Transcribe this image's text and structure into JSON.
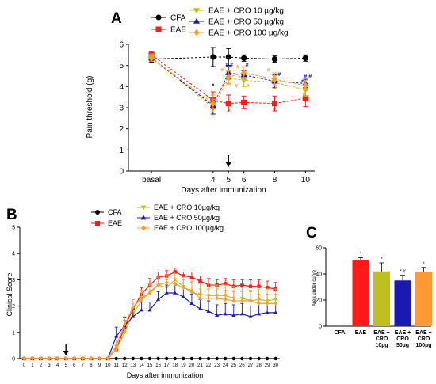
{
  "colors": {
    "CFA": "#000000",
    "EAE": "#ff1a1a",
    "CRO10": "#bfbf20",
    "CRO50": "#1a1ab3",
    "CRO100": "#ff9933",
    "axis": "#000000"
  },
  "chart_data": [
    {
      "panel": "A",
      "type": "line",
      "title": "",
      "xlabel": "Days after immunization",
      "ylabel": "Pain threshold (g)",
      "x_categories": [
        "basal",
        "4",
        "5",
        "6",
        "8",
        "10"
      ],
      "x_positions": [
        0,
        4,
        5,
        6,
        8,
        10
      ],
      "xlim": [
        -1.5,
        10.6
      ],
      "ylim": [
        0,
        6
      ],
      "yticks": [
        "0",
        "1",
        "2",
        "3",
        "4",
        "5",
        "6"
      ],
      "arrow_at_x": 5,
      "series": [
        {
          "name": "CFA",
          "key": "CFA",
          "marker": "circle",
          "values": [
            5.3,
            5.4,
            5.4,
            5.35,
            5.3,
            5.35
          ],
          "err": [
            0.15,
            0.45,
            0.4,
            0.15,
            0.15,
            0.15
          ]
        },
        {
          "name": "EAE",
          "key": "EAE",
          "marker": "square",
          "values": [
            5.5,
            3.35,
            3.2,
            3.25,
            3.2,
            3.45
          ],
          "err": [
            0.15,
            0.4,
            0.4,
            0.3,
            0.35,
            0.4
          ]
        },
        {
          "name": "EAE + CRO 10 µg/kg",
          "key": "CRO10",
          "marker": "tri-down",
          "values": [
            5.4,
            3.0,
            4.4,
            4.3,
            4.2,
            3.85
          ],
          "err": [
            0.15,
            0.4,
            0.3,
            0.3,
            0.3,
            0.3
          ]
        },
        {
          "name": "EAE + CRO 50 µg/kg",
          "key": "CRO50",
          "marker": "tri-up",
          "values": [
            5.35,
            3.1,
            4.65,
            4.55,
            4.25,
            4.15
          ],
          "err": [
            0.15,
            0.4,
            0.3,
            0.2,
            0.3,
            0.2
          ]
        },
        {
          "name": "EAE + CRO 100 µg/kg",
          "key": "CRO100",
          "marker": "diamond",
          "values": [
            5.35,
            3.2,
            4.45,
            4.65,
            4.35,
            4.05
          ],
          "err": [
            0.15,
            0.4,
            0.3,
            0.3,
            0.3,
            0.25
          ]
        }
      ],
      "annotations": [
        {
          "text": "*",
          "x": 4,
          "y": 3.95,
          "color": "#000000"
        },
        {
          "text": "*",
          "x": 5,
          "y": 2.75,
          "color": "#ff1a1a"
        },
        {
          "text": "*",
          "x": 6,
          "y": 2.85,
          "color": "#ff1a1a"
        },
        {
          "text": "*",
          "x": 8,
          "y": 2.8,
          "color": "#ff1a1a"
        },
        {
          "text": "*",
          "x": 10,
          "y": 3.3,
          "color": "#ff1a1a"
        },
        {
          "text": "# #",
          "x": 5.05,
          "y": 4.95,
          "color": "#1a1ab3"
        },
        {
          "text": "#",
          "x": 6.2,
          "y": 4.95,
          "color": "#1a1ab3"
        },
        {
          "text": "#",
          "x": 8.3,
          "y": 4.5,
          "color": "#1a1ab3"
        },
        {
          "text": "# #",
          "x": 10.15,
          "y": 4.4,
          "color": "#1a1ab3"
        },
        {
          "text": "#",
          "x": 4.6,
          "y": 4.7,
          "color": "#ff9933"
        },
        {
          "text": "#",
          "x": 5.6,
          "y": 4.85,
          "color": "#ff9933"
        },
        {
          "text": "#",
          "x": 7.6,
          "y": 4.7,
          "color": "#ff9933"
        },
        {
          "text": "#",
          "x": 5.5,
          "y": 3.95,
          "color": "#bfbf20"
        },
        {
          "text": "#",
          "x": 6.25,
          "y": 3.95,
          "color": "#bfbf20"
        },
        {
          "text": "#",
          "x": 8.1,
          "y": 3.9,
          "color": "#bfbf20"
        },
        {
          "text": "#",
          "x": 9.9,
          "y": 3.55,
          "color": "#bfbf20"
        },
        {
          "text": "*",
          "x": 5.7,
          "y": 4.35,
          "color": "#ff9933"
        },
        {
          "text": "*",
          "x": 7.8,
          "y": 4.1,
          "color": "#ff9933"
        },
        {
          "text": "*",
          "x": 9.8,
          "y": 4.15,
          "color": "#1a1ab3"
        }
      ]
    },
    {
      "panel": "B",
      "type": "line",
      "title": "",
      "xlabel": "Days after immunization",
      "ylabel": "Clinical Score",
      "xlim": [
        -0.5,
        30.5
      ],
      "ylim": [
        0,
        5
      ],
      "xticks": [
        "0",
        "1",
        "2",
        "3",
        "4",
        "5",
        "6",
        "7",
        "8",
        "9",
        "10",
        "11",
        "12",
        "13",
        "14",
        "15",
        "16",
        "17",
        "18",
        "19",
        "20",
        "21",
        "22",
        "23",
        "24",
        "25",
        "26",
        "27",
        "28",
        "29",
        "30"
      ],
      "yticks": [
        "0",
        "1",
        "2",
        "3",
        "4",
        "5"
      ],
      "arrow_at_x": 5,
      "series": [
        {
          "name": "CFA",
          "key": "CFA",
          "marker": "circle",
          "values": [
            0,
            0,
            0,
            0,
            0,
            0,
            0,
            0,
            0,
            0,
            0,
            0,
            0,
            0,
            0,
            0,
            0,
            0,
            0,
            0,
            0,
            0,
            0,
            0,
            0,
            0,
            0,
            0,
            0,
            0,
            0
          ]
        },
        {
          "name": "EAE",
          "key": "EAE",
          "marker": "square",
          "values": [
            0,
            0,
            0,
            0,
            0,
            0,
            0,
            0,
            0,
            0,
            0,
            0.35,
            1.2,
            1.9,
            2.45,
            2.8,
            3.1,
            3.15,
            3.3,
            3.15,
            3.1,
            2.95,
            2.8,
            2.8,
            2.85,
            2.75,
            2.8,
            2.75,
            2.75,
            2.7,
            2.65
          ],
          "err": [
            0,
            0,
            0,
            0,
            0,
            0,
            0,
            0,
            0,
            0,
            0,
            0.15,
            0.25,
            0.25,
            0.25,
            0.25,
            0.2,
            0.2,
            0.15,
            0.15,
            0.2,
            0.2,
            0.25,
            0.2,
            0.2,
            0.25,
            0.2,
            0.25,
            0.25,
            0.25,
            0.25
          ]
        },
        {
          "name": "EAE + CRO 10µg/kg",
          "key": "CRO10",
          "marker": "tri-down",
          "values": [
            0,
            0,
            0,
            0,
            0,
            0,
            0,
            0,
            0,
            0,
            0,
            0.35,
            1.0,
            1.7,
            2.2,
            2.55,
            2.8,
            2.7,
            3.0,
            2.75,
            2.5,
            2.45,
            2.4,
            2.4,
            2.4,
            2.3,
            2.3,
            2.2,
            2.25,
            2.2,
            2.25
          ],
          "err": [
            0,
            0,
            0,
            0,
            0,
            0,
            0,
            0,
            0,
            0,
            0,
            0.15,
            0.25,
            0.3,
            0.3,
            0.3,
            0.3,
            0.3,
            0.3,
            0.35,
            0.4,
            0.4,
            0.45,
            0.4,
            0.4,
            0.45,
            0.4,
            0.4,
            0.4,
            0.45,
            0.4
          ]
        },
        {
          "name": "EAE + CRO 50µg/kg",
          "key": "CRO50",
          "marker": "tri-up",
          "values": [
            0,
            0,
            0,
            0,
            0,
            0,
            0,
            0,
            0,
            0,
            0,
            0.85,
            1.25,
            1.6,
            1.85,
            1.85,
            2.25,
            2.5,
            2.5,
            2.35,
            2.1,
            1.9,
            1.8,
            1.65,
            1.7,
            1.65,
            1.7,
            1.6,
            1.7,
            1.75,
            1.75
          ],
          "err": [
            0,
            0,
            0,
            0,
            0,
            0,
            0,
            0,
            0,
            0,
            0,
            0.35,
            0.3,
            0.3,
            0.3,
            0.3,
            0.3,
            0.3,
            0.3,
            0.35,
            0.35,
            0.35,
            0.4,
            0.4,
            0.4,
            0.4,
            0.4,
            0.4,
            0.4,
            0.4,
            0.4
          ]
        },
        {
          "name": "EAE + CRO 100µg/kg",
          "key": "CRO100",
          "marker": "diamond",
          "values": [
            0,
            0,
            0,
            0,
            0,
            0,
            0,
            0,
            0,
            0,
            0,
            0.5,
            1.3,
            1.95,
            2.3,
            2.5,
            2.8,
            2.9,
            2.85,
            2.7,
            2.6,
            2.3,
            2.3,
            2.3,
            2.25,
            2.2,
            2.2,
            2.2,
            2.1,
            2.1,
            2.1
          ],
          "err": [
            0,
            0,
            0,
            0,
            0,
            0,
            0,
            0,
            0,
            0,
            0,
            0.2,
            0.3,
            0.3,
            0.3,
            0.3,
            0.3,
            0.3,
            0.3,
            0.3,
            0.35,
            0.35,
            0.35,
            0.35,
            0.35,
            0.35,
            0.35,
            0.35,
            0.35,
            0.35,
            0.35
          ]
        }
      ]
    },
    {
      "panel": "C",
      "type": "bar",
      "title": "",
      "xlabel": "",
      "ylabel": "Area under curve",
      "ylim": [
        0,
        60
      ],
      "yticks": [
        "0",
        "20",
        "40",
        "60"
      ],
      "categories": [
        {
          "lines": [
            "CFA"
          ]
        },
        {
          "lines": [
            "EAE"
          ]
        },
        {
          "lines": [
            "EAE +",
            "CRO",
            "10µg"
          ]
        },
        {
          "lines": [
            "EAE +",
            "CRO",
            "50µg"
          ]
        },
        {
          "lines": [
            "EAE +",
            "CRO",
            "100µg"
          ]
        }
      ],
      "keys": [
        "CFA",
        "EAE",
        "CRO10",
        "CRO50",
        "CRO100"
      ],
      "values": [
        0.3,
        50.5,
        42,
        35,
        41.5
      ],
      "err": [
        0,
        2,
        6.5,
        4,
        3.5
      ],
      "bar_labels": [
        "",
        "*",
        "*",
        "* #",
        "*"
      ]
    }
  ],
  "panels": {
    "A": {
      "letter": "A"
    },
    "B": {
      "letter": "B"
    },
    "C": {
      "letter": "C"
    }
  },
  "legends": {
    "A": [
      {
        "label": "CFA",
        "key": "CFA",
        "marker": "circle"
      },
      {
        "label": "EAE",
        "key": "EAE",
        "marker": "square"
      },
      {
        "label": "EAE + CRO 10 µg/kg",
        "key": "CRO10",
        "marker": "tri-down"
      },
      {
        "label": "EAE + CRO 50 µg/kg",
        "key": "CRO50",
        "marker": "tri-up"
      },
      {
        "label": "EAE + CRO 100 µg/kg",
        "key": "CRO100",
        "marker": "diamond"
      }
    ],
    "B": [
      {
        "label": "CFA",
        "key": "CFA",
        "marker": "circle"
      },
      {
        "label": "EAE",
        "key": "EAE",
        "marker": "square"
      },
      {
        "label": "EAE + CRO 10µg/kg",
        "key": "CRO10",
        "marker": "tri-down"
      },
      {
        "label": "EAE + CRO 50µg/kg",
        "key": "CRO50",
        "marker": "tri-up"
      },
      {
        "label": "EAE + CRO 100µg/kg",
        "key": "CRO100",
        "marker": "diamond"
      }
    ]
  }
}
